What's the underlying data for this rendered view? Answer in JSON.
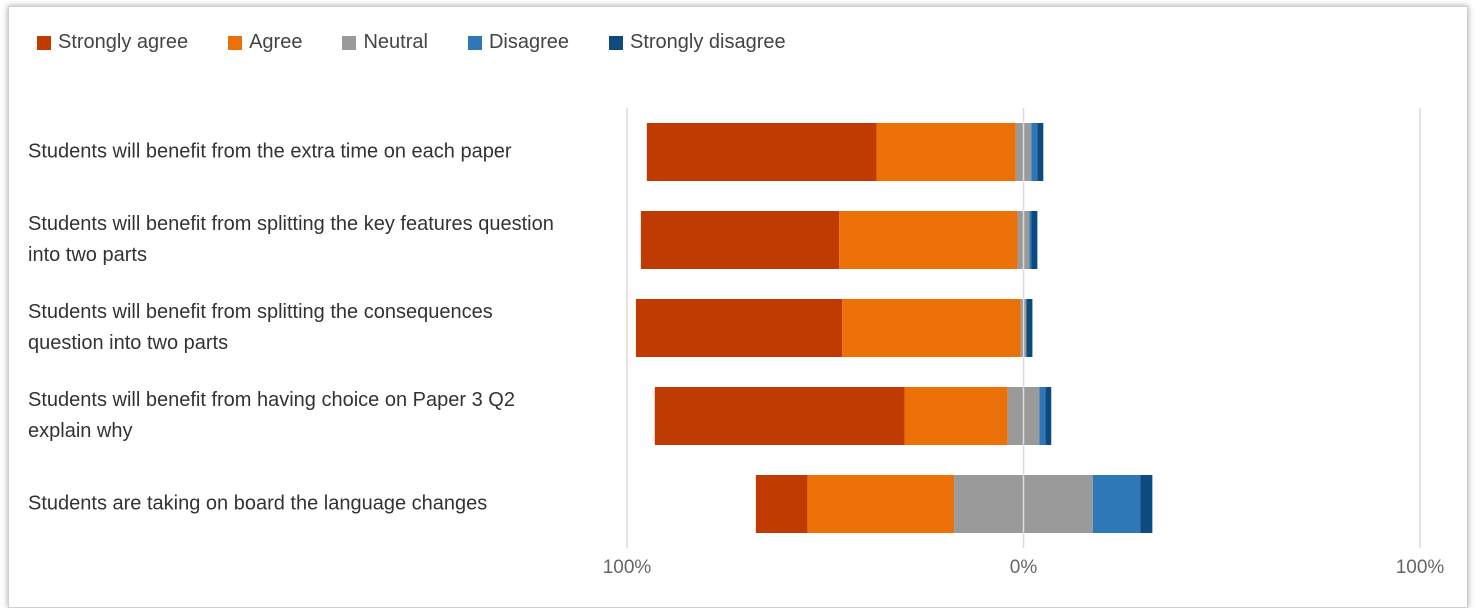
{
  "chart_data": {
    "type": "diverging_bar",
    "categories": [
      "Students will benefit from the extra time on each paper",
      "Students will benefit from splitting the key features question into two parts",
      "Students will benefit from splitting the consequences question into two parts",
      "Students will benefit from having choice on Paper 3 Q2 explain why",
      "Students are taking on board the language changes"
    ],
    "series": [
      {
        "name": "Strongly agree",
        "color": "#bf3b02",
        "values": [
          58,
          50,
          52,
          63,
          13
        ]
      },
      {
        "name": "Agree",
        "color": "#ec7008",
        "values": [
          35,
          45,
          45,
          26,
          37
        ]
      },
      {
        "name": "Neutral",
        "color": "#9a9a9a",
        "values": [
          4,
          3,
          1.5,
          8,
          35
        ]
      },
      {
        "name": "Disagree",
        "color": "#2e78b7",
        "values": [
          1.5,
          0.5,
          0,
          1.5,
          12
        ]
      },
      {
        "name": "Strongly disagree",
        "color": "#0d4a80",
        "values": [
          1.5,
          1.5,
          1.5,
          1.5,
          3
        ]
      }
    ],
    "xlim": [
      -100,
      100
    ],
    "xticks": [
      {
        "value": -100,
        "label": "100%"
      },
      {
        "value": 0,
        "label": "0%"
      },
      {
        "value": 100,
        "label": "100%"
      }
    ],
    "grid": true
  }
}
